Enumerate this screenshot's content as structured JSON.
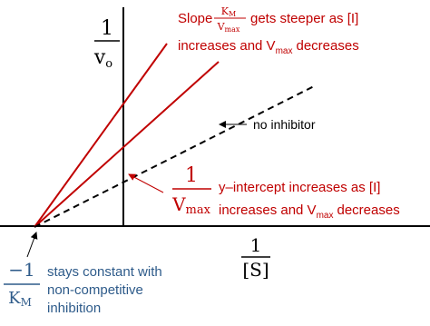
{
  "y_axis_label": {
    "numerator": "1",
    "denominator": "v",
    "denominator_sub": "o"
  },
  "x_axis_label": {
    "numerator": "1",
    "denominator": "[S]"
  },
  "slope_note": {
    "word": "Slope",
    "frac_num": "K",
    "frac_num_sub": "M",
    "frac_den": "V",
    "frac_den_sub": "max",
    "line1_rest": "gets steeper as [I]",
    "line2_a": "increases and V",
    "line2_sub": "max",
    "line2_b": "decreases"
  },
  "no_inhibitor_label": "no inhibitor",
  "intercept_note": {
    "frac_num": "1",
    "frac_den": "V",
    "frac_den_sub": "max",
    "line1": "y–intercept increases as [I]",
    "line2_a": "increases and V",
    "line2_sub": "max",
    "line2_b": "decreases"
  },
  "x_intercept_note": {
    "frac_num": "−1",
    "frac_den": "K",
    "frac_den_sub": "M",
    "lines": [
      "stays constant with",
      "non-competitive",
      "inhibition"
    ]
  }
}
